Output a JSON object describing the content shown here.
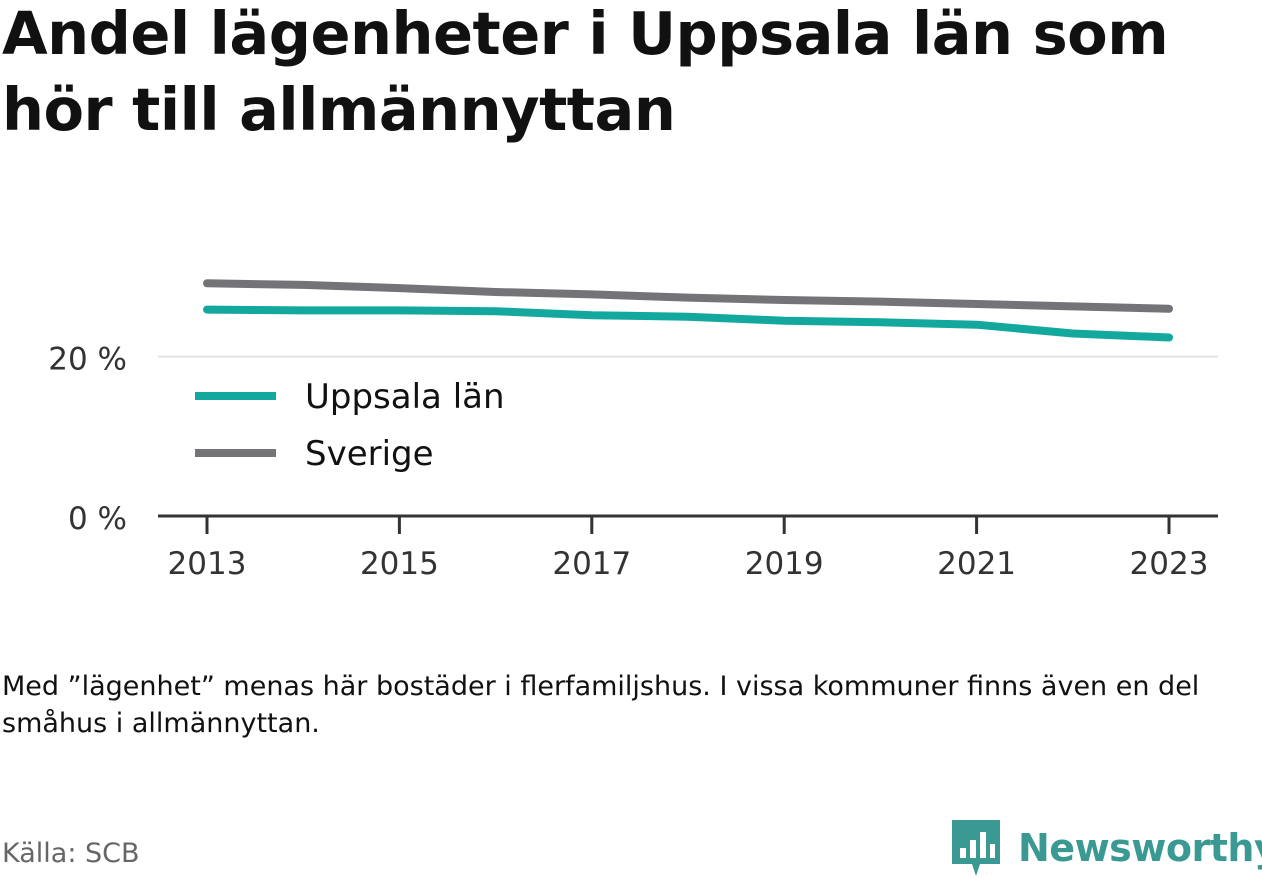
{
  "title": "Andel lägenheter i Uppsala län som hör till allmännyttan",
  "note": "Med ”lägenhet” menas här bostäder i flerfamiljshus. I vissa kommuner finns även en del småhus i allmännyttan.",
  "source": "Källa: SCB",
  "brand": {
    "name": "Newsworthy",
    "logo_icon": "newsworthy-bar-chart-icon",
    "color": "#3a9a93"
  },
  "chart_data": {
    "type": "line",
    "title": "Andel lägenheter i Uppsala län som hör till allmännyttan",
    "xlabel": "",
    "ylabel": "",
    "x": [
      2013,
      2014,
      2015,
      2016,
      2017,
      2018,
      2019,
      2020,
      2021,
      2022,
      2023
    ],
    "x_ticks": [
      "2013",
      "2015",
      "2017",
      "2019",
      "2021",
      "2023"
    ],
    "y_ticks": [
      {
        "value": 0,
        "label": "0 %"
      },
      {
        "value": 20,
        "label": "20 %"
      }
    ],
    "ylim": [
      0,
      31
    ],
    "grid": "horizontal",
    "legend": "inside-left",
    "series": [
      {
        "name": "Uppsala län",
        "color": "#13a89e",
        "values": [
          25.9,
          25.8,
          25.8,
          25.7,
          25.2,
          25.0,
          24.5,
          24.3,
          24.0,
          22.9,
          22.4
        ]
      },
      {
        "name": "Sverige",
        "color": "#747378",
        "values": [
          29.2,
          29.0,
          28.6,
          28.1,
          27.8,
          27.4,
          27.1,
          26.9,
          26.6,
          26.3,
          26.0
        ]
      }
    ]
  }
}
